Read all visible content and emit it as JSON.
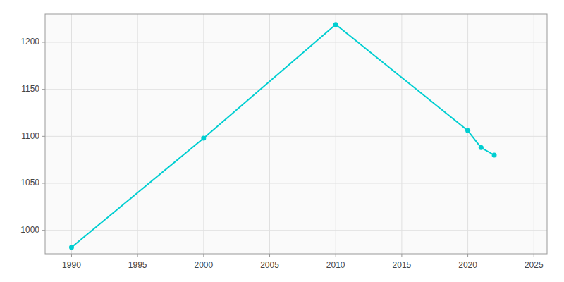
{
  "chart_data": {
    "type": "line",
    "x": [
      1990,
      2000,
      2010,
      2020,
      2021,
      2022
    ],
    "values": [
      982,
      1098,
      1219,
      1106,
      1088,
      1080
    ],
    "color": "#00CED1",
    "marker": "circle",
    "xlim": [
      1988,
      2026
    ],
    "ylim": [
      975,
      1230
    ],
    "xticks": [
      1990,
      1995,
      2000,
      2005,
      2010,
      2015,
      2020,
      2025
    ],
    "yticks": [
      1000,
      1050,
      1100,
      1150,
      1200
    ],
    "grid": true
  }
}
